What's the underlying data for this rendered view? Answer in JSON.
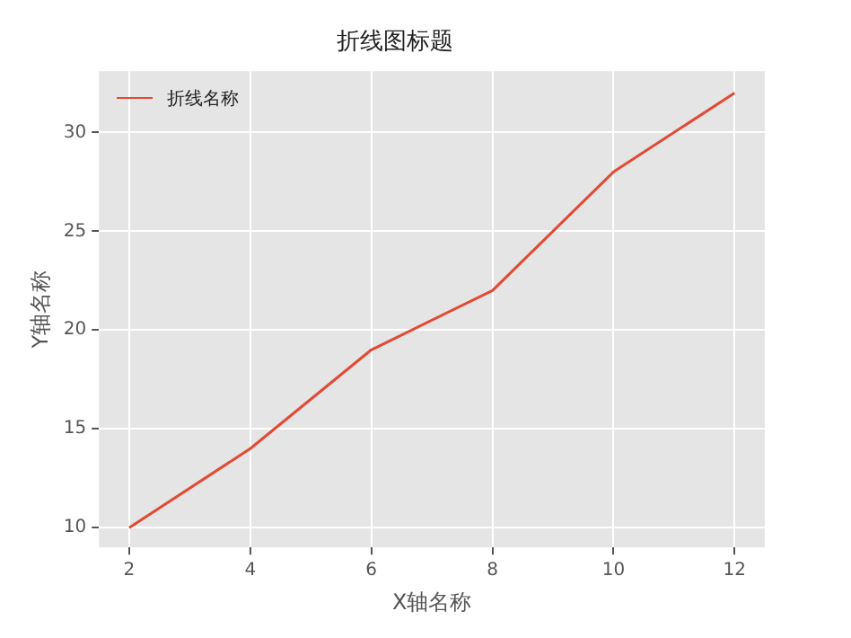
{
  "chart_data": {
    "type": "line",
    "title": "折线图标题",
    "xlabel": "X轴名称",
    "ylabel": "Y轴名称",
    "x": [
      2,
      4,
      6,
      8,
      10,
      12
    ],
    "series": [
      {
        "name": "折线名称",
        "color": "#e24a33",
        "values": [
          10,
          14,
          19,
          22,
          28,
          32
        ]
      }
    ],
    "xlim": [
      1.5,
      12.5
    ],
    "xticks": [
      2,
      4,
      6,
      8,
      10,
      12
    ],
    "ylim": [
      9.0,
      33.1
    ],
    "yticks": [
      10,
      15,
      20,
      25,
      30
    ],
    "grid": true,
    "legend": "top left",
    "marker": "none",
    "line_style": "solid"
  }
}
